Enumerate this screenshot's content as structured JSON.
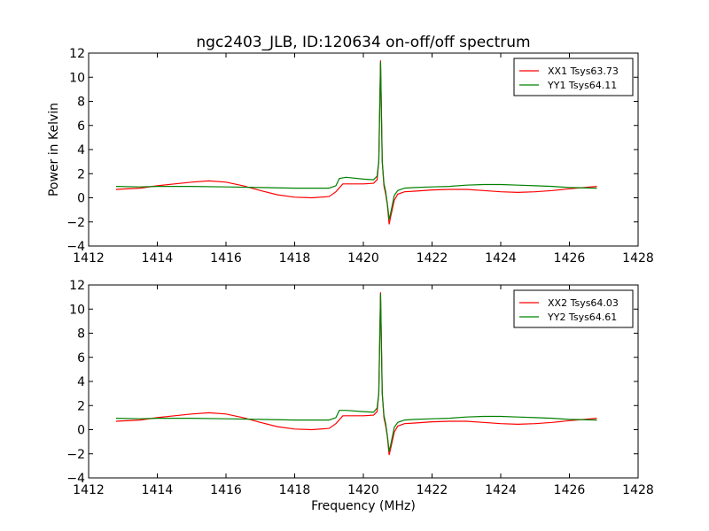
{
  "figure": {
    "title": "ngc2403_JLB, ID:120634 on-off/off spectrum",
    "xlabel": "Frequency (MHz)",
    "ylabel": "Power in Kelvin"
  },
  "chart_data": [
    {
      "type": "line",
      "title": "ngc2403_JLB, ID:120634 on-off/off spectrum",
      "xlabel": "",
      "ylabel": "Power in Kelvin",
      "xlim": [
        1412,
        1428
      ],
      "ylim": [
        -4,
        12
      ],
      "x_ticks": [
        "1412",
        "1414",
        "1416",
        "1418",
        "1420",
        "1422",
        "1424",
        "1426",
        "1428"
      ],
      "y_ticks": [
        "−4",
        "−2",
        "0",
        "2",
        "4",
        "6",
        "8",
        "10",
        "12"
      ],
      "grid": false,
      "legend_position": "top-right",
      "series": [
        {
          "name": "XX1 Tsys63.73",
          "color": "#ff0000",
          "points": [
            [
              1412.8,
              0.7
            ],
            [
              1413.5,
              0.8
            ],
            [
              1414.0,
              1.0
            ],
            [
              1414.5,
              1.15
            ],
            [
              1415.0,
              1.3
            ],
            [
              1415.5,
              1.4
            ],
            [
              1416.0,
              1.3
            ],
            [
              1416.5,
              1.0
            ],
            [
              1417.0,
              0.6
            ],
            [
              1417.5,
              0.25
            ],
            [
              1418.0,
              0.05
            ],
            [
              1418.5,
              0.0
            ],
            [
              1419.0,
              0.1
            ],
            [
              1419.2,
              0.5
            ],
            [
              1419.4,
              1.15
            ],
            [
              1420.0,
              1.15
            ],
            [
              1420.3,
              1.2
            ],
            [
              1420.4,
              1.5
            ],
            [
              1420.45,
              3.0
            ],
            [
              1420.5,
              11.4
            ],
            [
              1420.55,
              3.0
            ],
            [
              1420.6,
              1.0
            ],
            [
              1420.65,
              0.3
            ],
            [
              1420.7,
              -0.6
            ],
            [
              1420.75,
              -2.2
            ],
            [
              1420.8,
              -1.5
            ],
            [
              1420.9,
              -0.2
            ],
            [
              1421.0,
              0.3
            ],
            [
              1421.2,
              0.5
            ],
            [
              1421.5,
              0.55
            ],
            [
              1422.0,
              0.65
            ],
            [
              1422.5,
              0.7
            ],
            [
              1423.0,
              0.7
            ],
            [
              1423.5,
              0.6
            ],
            [
              1424.0,
              0.5
            ],
            [
              1424.5,
              0.45
            ],
            [
              1425.0,
              0.5
            ],
            [
              1425.5,
              0.6
            ],
            [
              1426.0,
              0.75
            ],
            [
              1426.8,
              0.95
            ]
          ]
        },
        {
          "name": "YY1 Tsys64.11",
          "color": "#008000",
          "points": [
            [
              1412.8,
              0.95
            ],
            [
              1413.5,
              0.9
            ],
            [
              1414.0,
              0.95
            ],
            [
              1415.0,
              0.95
            ],
            [
              1416.0,
              0.9
            ],
            [
              1417.0,
              0.85
            ],
            [
              1418.0,
              0.8
            ],
            [
              1419.0,
              0.8
            ],
            [
              1419.2,
              1.0
            ],
            [
              1419.3,
              1.6
            ],
            [
              1419.5,
              1.7
            ],
            [
              1420.0,
              1.55
            ],
            [
              1420.3,
              1.5
            ],
            [
              1420.4,
              1.8
            ],
            [
              1420.45,
              3.0
            ],
            [
              1420.5,
              11.3
            ],
            [
              1420.55,
              3.0
            ],
            [
              1420.6,
              1.2
            ],
            [
              1420.65,
              0.5
            ],
            [
              1420.7,
              -0.5
            ],
            [
              1420.75,
              -1.8
            ],
            [
              1420.8,
              -1.2
            ],
            [
              1420.9,
              0.2
            ],
            [
              1421.0,
              0.6
            ],
            [
              1421.2,
              0.8
            ],
            [
              1421.5,
              0.85
            ],
            [
              1422.0,
              0.9
            ],
            [
              1422.5,
              0.95
            ],
            [
              1423.0,
              1.05
            ],
            [
              1423.5,
              1.1
            ],
            [
              1424.0,
              1.1
            ],
            [
              1424.5,
              1.05
            ],
            [
              1425.0,
              1.0
            ],
            [
              1425.5,
              0.95
            ],
            [
              1426.0,
              0.85
            ],
            [
              1426.8,
              0.8
            ]
          ]
        }
      ]
    },
    {
      "type": "line",
      "title": "",
      "xlabel": "Frequency (MHz)",
      "ylabel": "",
      "xlim": [
        1412,
        1428
      ],
      "ylim": [
        -4,
        12
      ],
      "x_ticks": [
        "1412",
        "1414",
        "1416",
        "1418",
        "1420",
        "1422",
        "1424",
        "1426",
        "1428"
      ],
      "y_ticks": [
        "−4",
        "−2",
        "0",
        "2",
        "4",
        "6",
        "8",
        "10",
        "12"
      ],
      "grid": false,
      "legend_position": "top-right",
      "series": [
        {
          "name": "XX2 Tsys64.03",
          "color": "#ff0000",
          "points": [
            [
              1412.8,
              0.7
            ],
            [
              1413.5,
              0.8
            ],
            [
              1414.0,
              1.0
            ],
            [
              1414.5,
              1.15
            ],
            [
              1415.0,
              1.3
            ],
            [
              1415.5,
              1.4
            ],
            [
              1416.0,
              1.3
            ],
            [
              1416.5,
              1.0
            ],
            [
              1417.0,
              0.6
            ],
            [
              1417.5,
              0.25
            ],
            [
              1418.0,
              0.05
            ],
            [
              1418.5,
              0.0
            ],
            [
              1419.0,
              0.1
            ],
            [
              1419.2,
              0.5
            ],
            [
              1419.4,
              1.15
            ],
            [
              1420.0,
              1.15
            ],
            [
              1420.3,
              1.2
            ],
            [
              1420.4,
              1.5
            ],
            [
              1420.45,
              3.0
            ],
            [
              1420.5,
              11.4
            ],
            [
              1420.55,
              3.0
            ],
            [
              1420.6,
              1.0
            ],
            [
              1420.65,
              0.3
            ],
            [
              1420.7,
              -0.6
            ],
            [
              1420.75,
              -2.1
            ],
            [
              1420.8,
              -1.5
            ],
            [
              1420.9,
              -0.2
            ],
            [
              1421.0,
              0.3
            ],
            [
              1421.2,
              0.5
            ],
            [
              1421.5,
              0.55
            ],
            [
              1422.0,
              0.65
            ],
            [
              1422.5,
              0.7
            ],
            [
              1423.0,
              0.7
            ],
            [
              1423.5,
              0.6
            ],
            [
              1424.0,
              0.5
            ],
            [
              1424.5,
              0.45
            ],
            [
              1425.0,
              0.5
            ],
            [
              1425.5,
              0.6
            ],
            [
              1426.0,
              0.75
            ],
            [
              1426.8,
              0.95
            ]
          ]
        },
        {
          "name": "YY2 Tsys64.61",
          "color": "#008000",
          "points": [
            [
              1412.8,
              0.95
            ],
            [
              1413.5,
              0.9
            ],
            [
              1414.0,
              0.95
            ],
            [
              1415.0,
              0.95
            ],
            [
              1416.0,
              0.9
            ],
            [
              1417.0,
              0.85
            ],
            [
              1418.0,
              0.8
            ],
            [
              1419.0,
              0.8
            ],
            [
              1419.2,
              1.0
            ],
            [
              1419.3,
              1.6
            ],
            [
              1419.5,
              1.6
            ],
            [
              1420.0,
              1.5
            ],
            [
              1420.3,
              1.45
            ],
            [
              1420.4,
              1.8
            ],
            [
              1420.45,
              3.0
            ],
            [
              1420.5,
              11.3
            ],
            [
              1420.55,
              3.0
            ],
            [
              1420.6,
              1.2
            ],
            [
              1420.65,
              0.5
            ],
            [
              1420.7,
              -0.5
            ],
            [
              1420.75,
              -1.8
            ],
            [
              1420.8,
              -1.2
            ],
            [
              1420.9,
              0.2
            ],
            [
              1421.0,
              0.6
            ],
            [
              1421.2,
              0.8
            ],
            [
              1421.5,
              0.85
            ],
            [
              1422.0,
              0.9
            ],
            [
              1422.5,
              0.95
            ],
            [
              1423.0,
              1.05
            ],
            [
              1423.5,
              1.1
            ],
            [
              1424.0,
              1.1
            ],
            [
              1424.5,
              1.05
            ],
            [
              1425.0,
              1.0
            ],
            [
              1425.5,
              0.95
            ],
            [
              1426.0,
              0.85
            ],
            [
              1426.8,
              0.8
            ]
          ]
        }
      ]
    }
  ]
}
